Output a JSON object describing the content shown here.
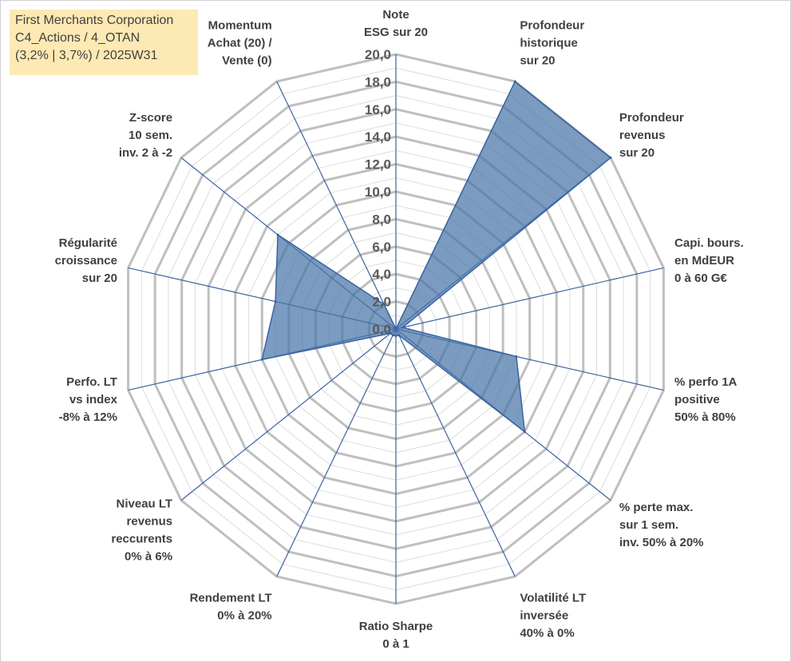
{
  "info": {
    "line1": "First Merchants Corporation",
    "line2": "C4_Actions / 4_OTAN",
    "line3": "(3,2% | 3,7%) / 2025W31"
  },
  "colors": {
    "fill": "#4a75a8",
    "stroke": "#3a64a0",
    "spokes": "#3a64a0",
    "grid_major": "#bfbfbf",
    "grid_minor": "#dcdcdc",
    "info_bg": "#fde9b3"
  },
  "chart_data": {
    "type": "radar",
    "rmin": 0,
    "rmax": 20,
    "major_step": 2,
    "minor_step": 1,
    "tick_labels": [
      "0,0",
      "2,0",
      "4,0",
      "6,0",
      "8,0",
      "10,0",
      "12,0",
      "14,0",
      "16,0",
      "18,0",
      "20,0"
    ],
    "axes": [
      {
        "label": [
          "Note",
          "ESG sur 20"
        ],
        "value": 0
      },
      {
        "label": [
          "Profondeur",
          "historique",
          "sur 20"
        ],
        "value": 20
      },
      {
        "label": [
          "Profondeur",
          "revenus",
          "sur 20"
        ],
        "value": 20
      },
      {
        "label": [
          "Capi. bours.",
          "en MdEUR",
          "0 à 60 G€"
        ],
        "value": 0.5
      },
      {
        "label": [
          "% perfo 1A",
          "positive",
          "50% à 80%"
        ],
        "value": 9
      },
      {
        "label": [
          "% perte max.",
          "sur 1 sem.",
          "inv. 50% à 20%"
        ],
        "value": 12
      },
      {
        "label": [
          "Volatilité LT",
          "inversée",
          "40% à 0%"
        ],
        "value": 0.5
      },
      {
        "label": [
          "Ratio Sharpe",
          "0 à 1"
        ],
        "value": 0.5
      },
      {
        "label": [
          "Rendement LT",
          "0% à 20%"
        ],
        "value": 0.5
      },
      {
        "label": [
          "Niveau LT",
          "revenus",
          "reccurents",
          "0% à 6%"
        ],
        "value": 0.5
      },
      {
        "label": [
          "Perfo. LT",
          "vs index",
          "-8% à 12%"
        ],
        "value": 10
      },
      {
        "label": [
          "Régularité",
          "croissance",
          "sur 20"
        ],
        "value": 9
      },
      {
        "label": [
          "Z-score",
          "10 sem.",
          "inv. 2 à -2"
        ],
        "value": 11
      },
      {
        "label": [
          "Momentum",
          "Achat (20) /",
          "Vente (0)"
        ],
        "value": 2
      }
    ]
  }
}
